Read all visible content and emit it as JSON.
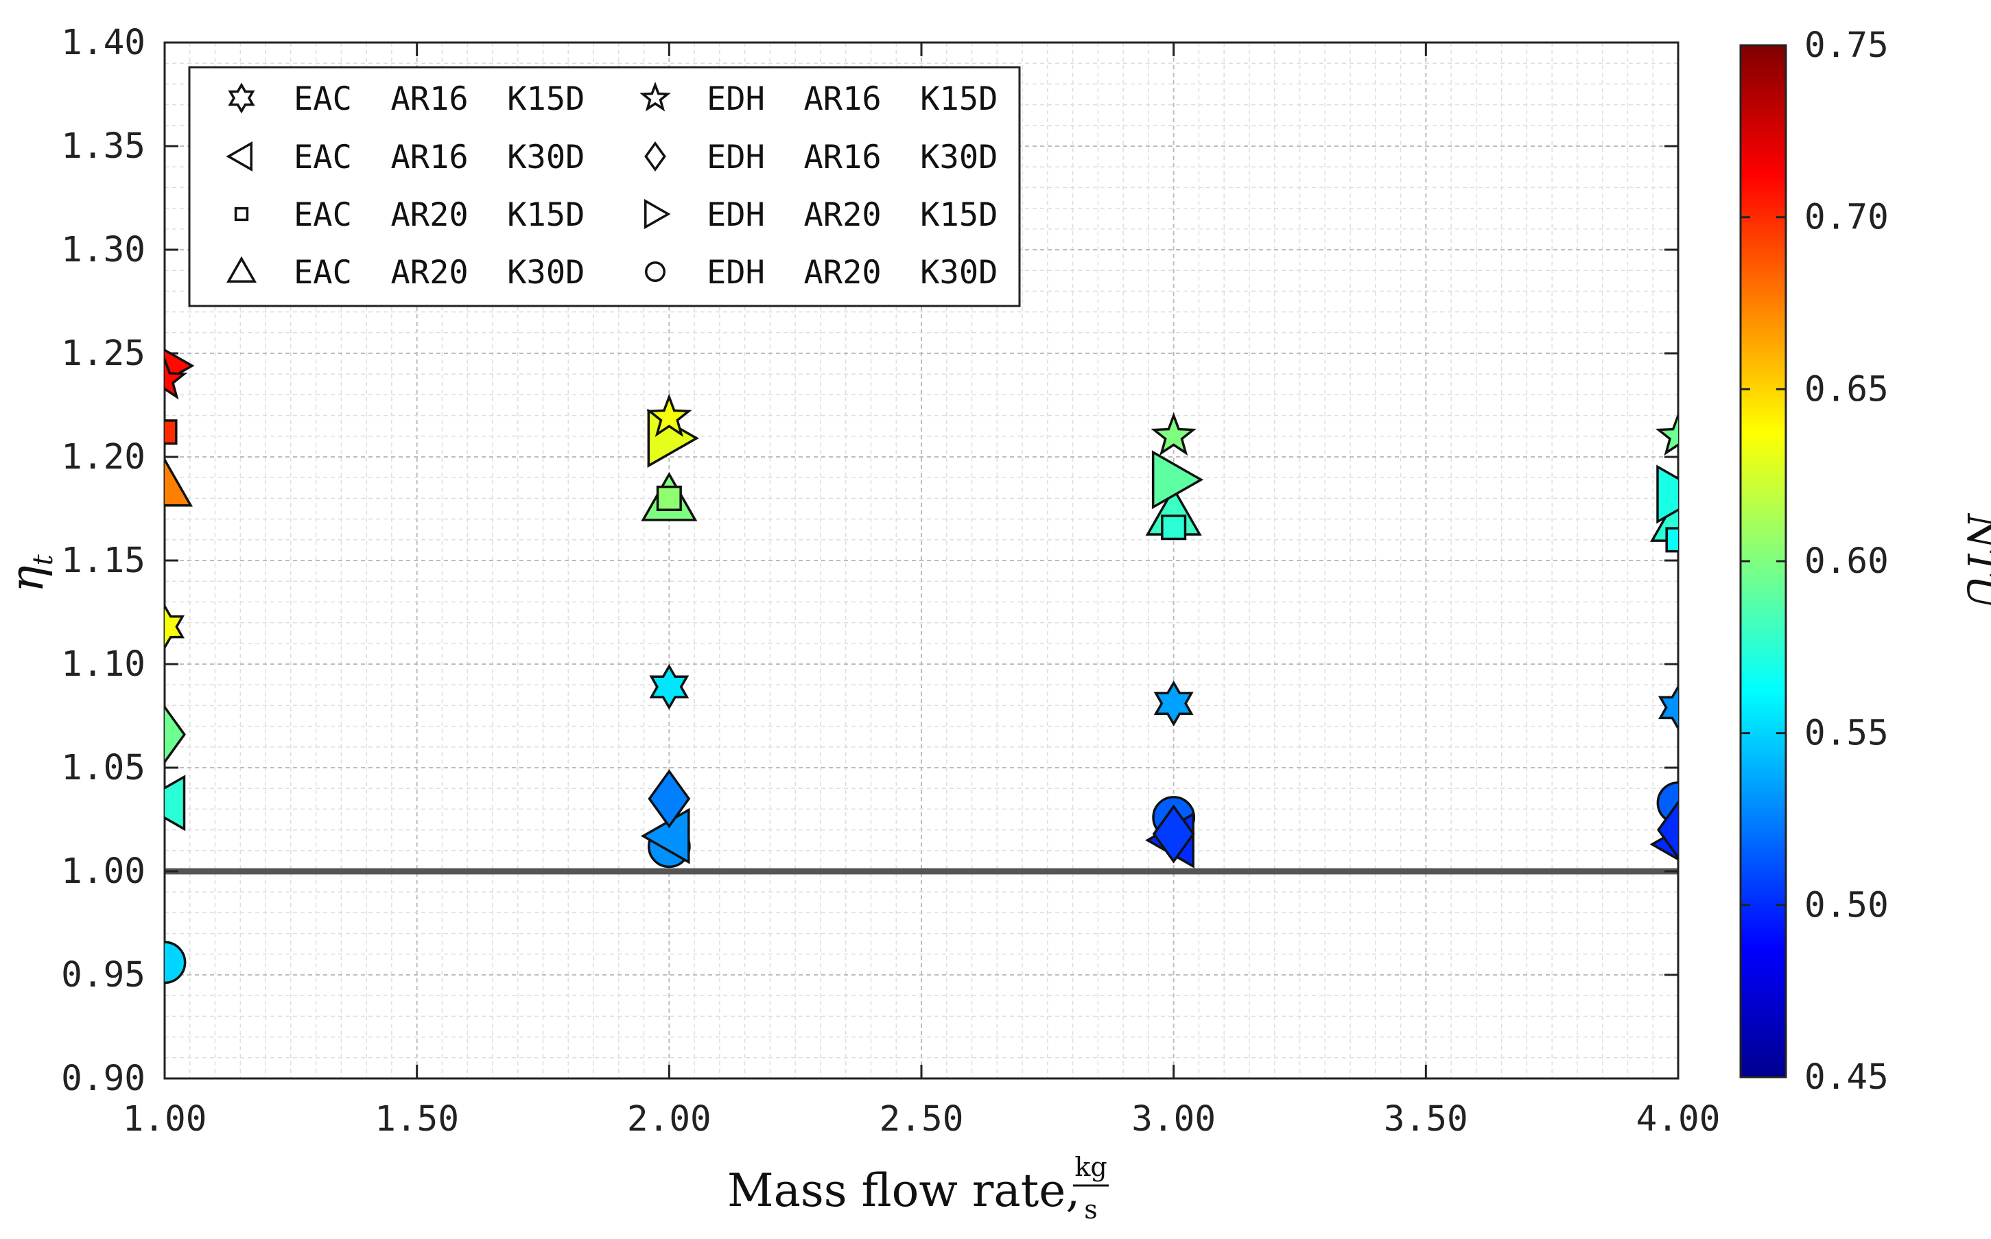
{
  "chart_data": {
    "type": "scatter",
    "xlabel": "Mass flow rate,",
    "xlabel_unit_num": "kg",
    "xlabel_unit_den": "s",
    "ylabel": "η",
    "ylabel_sub": "t",
    "xlim": [
      1.0,
      4.0
    ],
    "ylim": [
      0.9,
      1.4
    ],
    "xticks": [
      "1.00",
      "1.50",
      "2.00",
      "2.50",
      "3.00",
      "3.50",
      "4.00"
    ],
    "yticks": [
      "0.90",
      "0.95",
      "1.00",
      "1.05",
      "1.10",
      "1.15",
      "1.20",
      "1.25",
      "1.30",
      "1.35",
      "1.40"
    ],
    "reference_line": 1.0,
    "grid": "minor-dashed",
    "colorbar": {
      "label": "NTU",
      "min": 0.45,
      "max": 0.75,
      "ticks": [
        "0.45",
        "0.50",
        "0.55",
        "0.60",
        "0.65",
        "0.70",
        "0.75"
      ],
      "colormap": "jet"
    },
    "legend_position": "top-left",
    "series": [
      {
        "name": "EAC  AR16  K15D",
        "marker": "hexagram",
        "points": [
          {
            "x": 1.0,
            "y": 1.118,
            "ntu": 0.635
          },
          {
            "x": 2.0,
            "y": 1.089,
            "ntu": 0.555
          },
          {
            "x": 3.0,
            "y": 1.081,
            "ntu": 0.535
          },
          {
            "x": 4.0,
            "y": 1.079,
            "ntu": 0.53
          }
        ]
      },
      {
        "name": "EAC  AR16  K30D",
        "marker": "triangle-left",
        "points": [
          {
            "x": 1.0,
            "y": 1.033,
            "ntu": 0.575
          },
          {
            "x": 2.0,
            "y": 1.017,
            "ntu": 0.53
          },
          {
            "x": 3.0,
            "y": 1.015,
            "ntu": 0.5
          },
          {
            "x": 4.0,
            "y": 1.013,
            "ntu": 0.5
          }
        ]
      },
      {
        "name": "EAC  AR20  K15D",
        "marker": "square",
        "points": [
          {
            "x": 1.0,
            "y": 1.212,
            "ntu": 0.7
          },
          {
            "x": 2.0,
            "y": 1.18,
            "ntu": 0.605
          },
          {
            "x": 3.0,
            "y": 1.166,
            "ntu": 0.575
          },
          {
            "x": 4.0,
            "y": 1.16,
            "ntu": 0.565
          }
        ]
      },
      {
        "name": "EAC  AR20  K30D",
        "marker": "triangle-up",
        "points": [
          {
            "x": 1.0,
            "y": 1.186,
            "ntu": 0.675
          },
          {
            "x": 2.0,
            "y": 1.179,
            "ntu": 0.6
          },
          {
            "x": 3.0,
            "y": 1.172,
            "ntu": 0.58
          },
          {
            "x": 4.0,
            "y": 1.169,
            "ntu": 0.575
          }
        ]
      },
      {
        "name": "EDH  AR16  K15D",
        "marker": "star",
        "points": [
          {
            "x": 1.0,
            "y": 1.237,
            "ntu": 0.71
          },
          {
            "x": 2.0,
            "y": 1.219,
            "ntu": 0.635
          },
          {
            "x": 3.0,
            "y": 1.21,
            "ntu": 0.6
          },
          {
            "x": 4.0,
            "y": 1.21,
            "ntu": 0.595
          }
        ]
      },
      {
        "name": "EDH  AR16  K30D",
        "marker": "diamond",
        "points": [
          {
            "x": 1.0,
            "y": 1.066,
            "ntu": 0.595
          },
          {
            "x": 2.0,
            "y": 1.035,
            "ntu": 0.525
          },
          {
            "x": 3.0,
            "y": 1.018,
            "ntu": 0.505
          },
          {
            "x": 4.0,
            "y": 1.02,
            "ntu": 0.5
          }
        ]
      },
      {
        "name": "EDH  AR20  K15D",
        "marker": "triangle-right",
        "points": [
          {
            "x": 1.0,
            "y": 1.244,
            "ntu": 0.71
          },
          {
            "x": 2.0,
            "y": 1.209,
            "ntu": 0.63
          },
          {
            "x": 3.0,
            "y": 1.189,
            "ntu": 0.59
          },
          {
            "x": 4.0,
            "y": 1.182,
            "ntu": 0.57
          }
        ]
      },
      {
        "name": "EDH  AR20  K30D",
        "marker": "circle",
        "points": [
          {
            "x": 1.0,
            "y": 0.956,
            "ntu": 0.55
          },
          {
            "x": 2.0,
            "y": 1.012,
            "ntu": 0.53
          },
          {
            "x": 3.0,
            "y": 1.026,
            "ntu": 0.515
          },
          {
            "x": 4.0,
            "y": 1.033,
            "ntu": 0.515
          }
        ]
      }
    ]
  }
}
